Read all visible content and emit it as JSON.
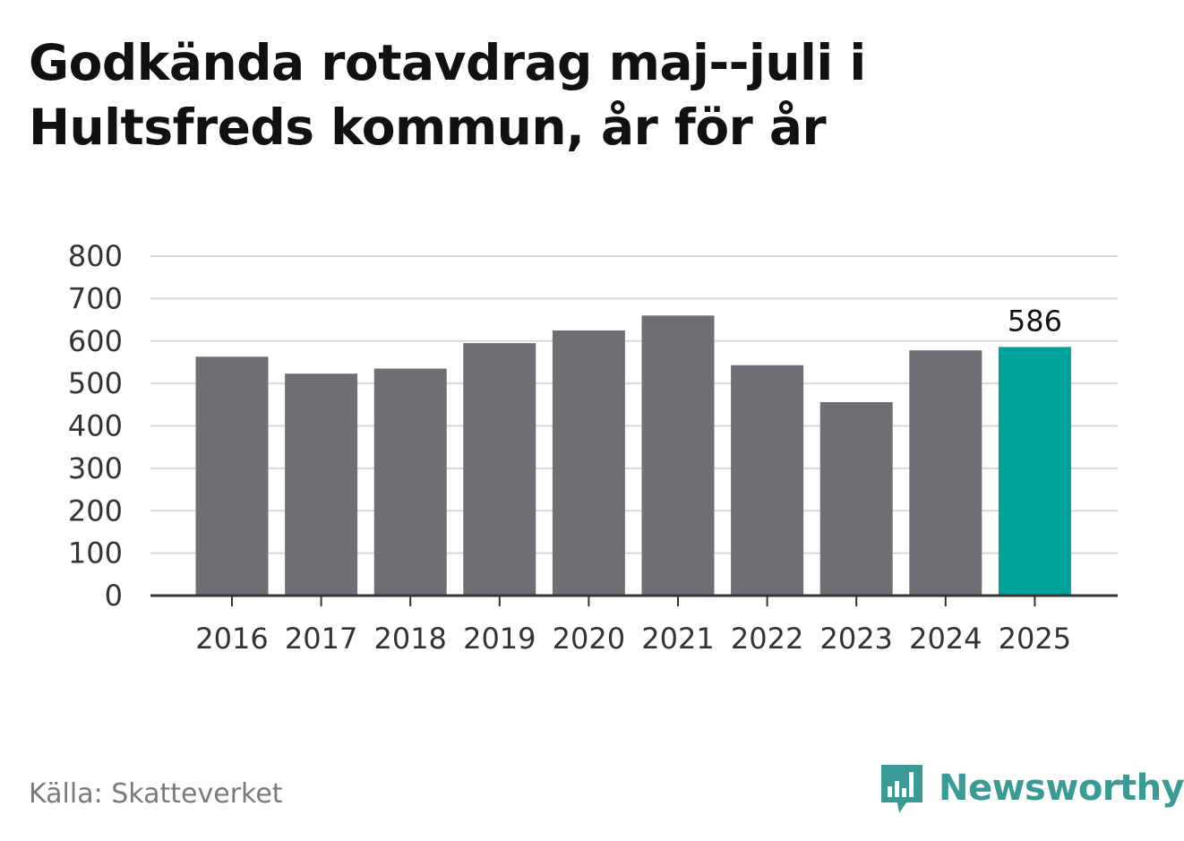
{
  "title": "Godkända rotavdrag maj--juli i\nHultsfreds kommun, år för år",
  "source": "Källa: Skatteverket",
  "brand": {
    "name": "Newsworthy",
    "icon": "newsworthy-logo-icon",
    "color": "#3a9a96"
  },
  "colors": {
    "bar": "#6f6e74",
    "highlight": "#00a29a",
    "grid": "#d9d9d9",
    "axis": "#333333"
  },
  "chart_data": {
    "type": "bar",
    "categories": [
      "2016",
      "2017",
      "2018",
      "2019",
      "2020",
      "2021",
      "2022",
      "2023",
      "2024",
      "2025"
    ],
    "values": [
      563,
      523,
      535,
      595,
      625,
      660,
      543,
      456,
      578,
      586
    ],
    "highlight_index": 9,
    "data_labels": [
      {
        "index": 9,
        "text": "586"
      }
    ],
    "ylim": [
      0,
      800
    ],
    "yticks": [
      "0",
      "100",
      "200",
      "300",
      "400",
      "500",
      "600",
      "700",
      "800"
    ],
    "grid": true,
    "legend": "none"
  }
}
